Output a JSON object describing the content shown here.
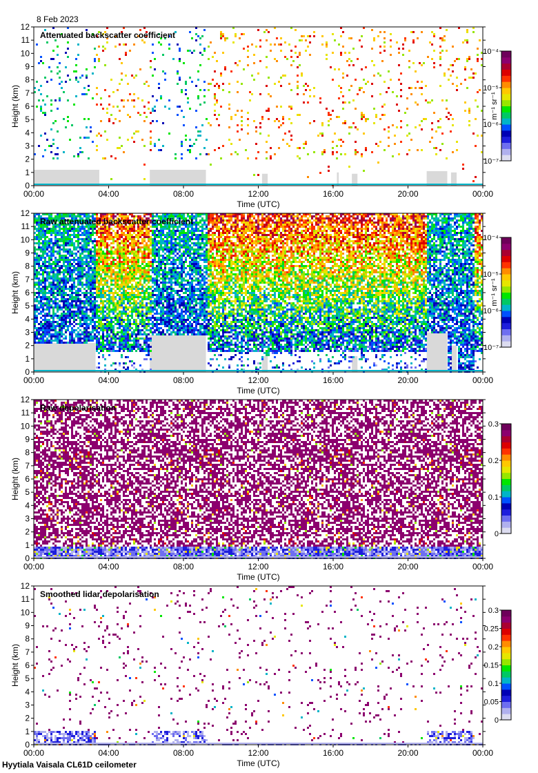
{
  "header": {
    "date": "8 Feb 2023"
  },
  "footer": {
    "caption": "Hyytiala Vaisala CL61D ceilometer"
  },
  "colors": {
    "colormap": [
      "#dcdcf0",
      "#b0b0ee",
      "#6e6ef0",
      "#1e1edc",
      "#0000b4",
      "#0050ff",
      "#00b4c8",
      "#00c864",
      "#00e600",
      "#96e600",
      "#e6e600",
      "#ffc800",
      "#ff8c00",
      "#ff3200",
      "#dc0000",
      "#aa0030",
      "#8c006e",
      "#6e005a"
    ],
    "background": "#ffffff",
    "missing": "#d9d9d9"
  },
  "chart_data": [
    {
      "type": "heatmap",
      "title": "Attenuated backscatter coefficient",
      "xlabel": "Time (UTC)",
      "ylabel": "Height (km)",
      "xticks": [
        "00:00",
        "04:00",
        "08:00",
        "12:00",
        "16:00",
        "20:00",
        "00:00"
      ],
      "xlim": [
        0,
        24
      ],
      "ylim": [
        0,
        12
      ],
      "yticks": [
        "0",
        "1",
        "2",
        "3",
        "4",
        "5",
        "6",
        "7",
        "8",
        "9",
        "10",
        "11",
        "12"
      ],
      "colorbar": {
        "unit": "m⁻¹ sr⁻¹",
        "ticks": [
          "10⁻⁷",
          "10⁻⁶",
          "10⁻⁵",
          "10⁻⁴"
        ],
        "values": [
          1e-07,
          1e-06,
          1e-05,
          0.0001
        ],
        "scale": "log"
      },
      "density": 0.07,
      "missing_bands": [
        [
          0,
          3.5,
          0,
          1.2
        ],
        [
          6.2,
          9.2,
          0,
          1.2
        ],
        [
          12.2,
          12.5,
          0,
          0.9
        ],
        [
          16.2,
          16.3,
          0,
          1.0
        ],
        [
          17.0,
          17.3,
          0,
          0.9
        ],
        [
          21.0,
          22.1,
          0,
          1.1
        ],
        [
          22.3,
          22.6,
          0,
          1.0
        ]
      ]
    },
    {
      "type": "heatmap",
      "title": "Raw attenuated backscatter coefficient",
      "xlabel": "Time (UTC)",
      "ylabel": "Height (km)",
      "xticks": [
        "00:00",
        "04:00",
        "08:00",
        "12:00",
        "16:00",
        "20:00",
        "00:00"
      ],
      "xlim": [
        0,
        24
      ],
      "ylim": [
        0,
        12
      ],
      "yticks": [
        "0",
        "1",
        "2",
        "3",
        "4",
        "5",
        "6",
        "7",
        "8",
        "9",
        "10",
        "11",
        "12"
      ],
      "colorbar": {
        "unit": "m⁻¹ sr⁻¹",
        "ticks": [
          "10⁻⁷",
          "10⁻⁶",
          "10⁻⁵",
          "10⁻⁴"
        ],
        "values": [
          1e-07,
          1e-06,
          1e-05,
          0.0001
        ],
        "scale": "log"
      },
      "density": 0.8,
      "missing_bands": [
        [
          0,
          3.3,
          0,
          2.2
        ],
        [
          6.2,
          9.2,
          0,
          2.8
        ],
        [
          12.2,
          12.5,
          0,
          1.2
        ],
        [
          17.0,
          17.3,
          0,
          1.2
        ],
        [
          21.0,
          22.1,
          0,
          3.0
        ],
        [
          22.3,
          22.6,
          0,
          2.0
        ]
      ]
    },
    {
      "type": "heatmap",
      "title": "Raw depolarisation",
      "xlabel": "Time (UTC)",
      "ylabel": "Height (km)",
      "xticks": [
        "00:00",
        "04:00",
        "08:00",
        "12:00",
        "16:00",
        "20:00",
        "00:00"
      ],
      "xlim": [
        0,
        24
      ],
      "ylim": [
        0,
        12
      ],
      "yticks": [
        "0",
        "1",
        "2",
        "3",
        "4",
        "5",
        "6",
        "7",
        "8",
        "9",
        "10",
        "11",
        "12"
      ],
      "colorbar": {
        "unit": "",
        "ticks": [
          "0",
          "0.1",
          "0.2",
          "0.3"
        ],
        "values": [
          0,
          0.1,
          0.2,
          0.3
        ],
        "scale": "linear"
      },
      "density": 0.6,
      "missing_bands": []
    },
    {
      "type": "heatmap",
      "title": "Smoothed lidar depolarisation",
      "xlabel": "Time (UTC)",
      "ylabel": "Height (km)",
      "xticks": [
        "00:00",
        "04:00",
        "08:00",
        "12:00",
        "16:00",
        "20:00",
        "00:00"
      ],
      "xlim": [
        0,
        24
      ],
      "ylim": [
        0,
        12
      ],
      "yticks": [
        "0",
        "1",
        "2",
        "3",
        "4",
        "5",
        "6",
        "7",
        "8",
        "9",
        "10",
        "11",
        "12"
      ],
      "colorbar": {
        "unit": "",
        "ticks": [
          "0",
          "0.05",
          "0.1",
          "0.15",
          "0.2",
          "0.25",
          "0.3"
        ],
        "values": [
          0,
          0.05,
          0.1,
          0.15,
          0.2,
          0.25,
          0.3
        ],
        "scale": "linear"
      },
      "density": 0.04,
      "missing_bands": []
    }
  ]
}
